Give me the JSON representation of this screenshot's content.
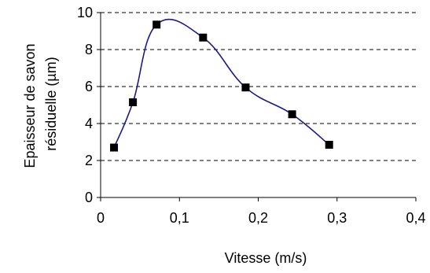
{
  "chart_data": {
    "type": "scatter",
    "title": "",
    "xlabel": "Vitesse (m/s)",
    "ylabel_lines": [
      "Epaisseur de savon",
      "résiduelle (µm)"
    ],
    "xlim": [
      0,
      0.4
    ],
    "ylim": [
      0,
      10
    ],
    "x_ticks": [
      0,
      0.1,
      0.2,
      0.3,
      0.4
    ],
    "x_tick_labels": [
      "0",
      "0,1",
      "0,2",
      "0,3",
      "0,4"
    ],
    "y_ticks": [
      0,
      2,
      4,
      6,
      8,
      10
    ],
    "y_tick_labels": [
      "0",
      "2",
      "4",
      "6",
      "8",
      "10"
    ],
    "grid": "horizontal dashed",
    "series": [
      {
        "x": [
          0.017,
          0.041,
          0.071,
          0.13,
          0.184,
          0.243,
          0.29
        ],
        "y": [
          2.7,
          5.15,
          9.35,
          8.65,
          5.95,
          4.5,
          2.85
        ],
        "marker": "square",
        "marker_color": "#000000",
        "line_color": "#1a1a8c",
        "smooth": true
      }
    ]
  }
}
